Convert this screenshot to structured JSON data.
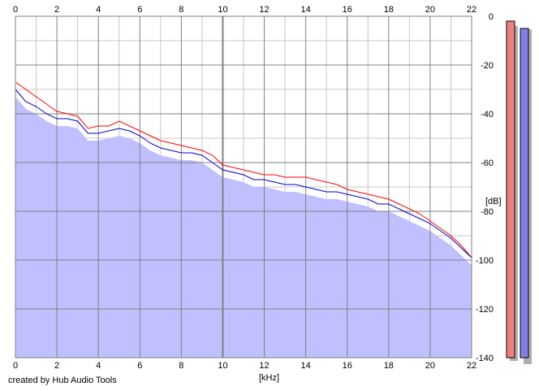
{
  "credit": "created by Hub Audio Tools",
  "chart_data": {
    "type": "area",
    "xlabel": "[kHz]",
    "ylabel": "[dB]",
    "xlim": [
      0,
      22
    ],
    "ylim": [
      -140,
      0
    ],
    "x_ticks": [
      0,
      2,
      4,
      6,
      8,
      10,
      12,
      14,
      16,
      18,
      20,
      22
    ],
    "y_ticks": [
      0,
      -20,
      -40,
      -60,
      -80,
      -100,
      -120,
      -140
    ],
    "y_tick_labels": [
      "0",
      "-20",
      "-40",
      "-60",
      "-80",
      "-100",
      "-120",
      "-140"
    ],
    "grid": true,
    "colors": {
      "left_line": "#ff0000",
      "right_line": "#0000cc",
      "fill": "#c0c0ff",
      "left_meter": "#f08080",
      "right_meter": "#8080e8",
      "grid_major": "#808080",
      "grid_minor": "#c8c8c8"
    },
    "x": [
      0,
      0.5,
      1,
      1.5,
      2,
      2.5,
      3,
      3.5,
      4,
      4.5,
      5,
      5.5,
      6,
      6.5,
      7,
      7.5,
      8,
      8.5,
      9,
      9.5,
      10,
      10.5,
      11,
      11.5,
      12,
      12.5,
      13,
      13.5,
      14,
      14.5,
      15,
      15.5,
      16,
      16.5,
      17,
      17.5,
      18,
      18.5,
      19,
      19.5,
      20,
      20.5,
      21,
      21.5,
      22
    ],
    "series": [
      {
        "channel": "left",
        "values": [
          -27,
          -30,
          -33,
          -36,
          -39,
          -40,
          -41,
          -46,
          -45,
          -45,
          -43,
          -45,
          -47,
          -49,
          -51,
          -52,
          -53,
          -54,
          -55,
          -57,
          -61,
          -62,
          -63,
          -64,
          -65,
          -65,
          -66,
          -66,
          -66,
          -67,
          -68,
          -69,
          -71,
          -72,
          -73,
          -74,
          -75,
          -77,
          -79,
          -81,
          -84,
          -87,
          -90,
          -94,
          -99
        ]
      },
      {
        "channel": "right",
        "values": [
          -30,
          -35,
          -37,
          -40,
          -42,
          -42,
          -43,
          -48,
          -48,
          -47,
          -46,
          -47,
          -49,
          -52,
          -54,
          -55,
          -56,
          -56,
          -57,
          -60,
          -63,
          -64,
          -65,
          -67,
          -67,
          -68,
          -69,
          -69,
          -70,
          -71,
          -72,
          -72,
          -73,
          -74,
          -75,
          -77,
          -77,
          -79,
          -81,
          -83,
          -85,
          -88,
          -91,
          -95,
          -99
        ]
      }
    ],
    "meters": {
      "left": -2,
      "right": -5
    }
  }
}
